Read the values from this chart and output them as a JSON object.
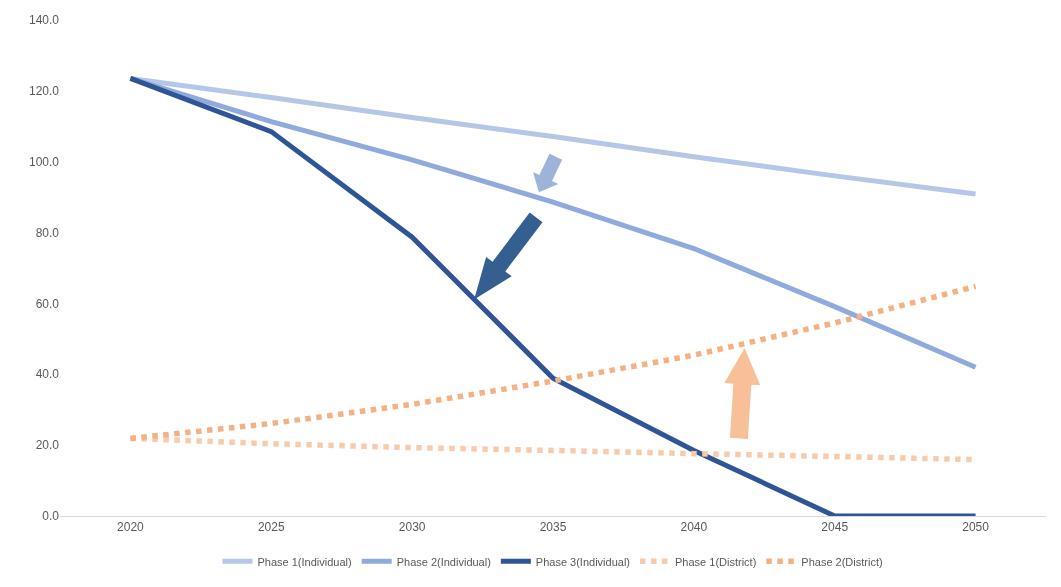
{
  "chart_data": {
    "type": "line",
    "categories": [
      "2020",
      "2025",
      "2030",
      "2035",
      "2040",
      "2045",
      "2050"
    ],
    "series": [
      {
        "name": "Phase 1(Individual)",
        "color": "#b4c7e7",
        "line_style": "solid",
        "values": [
          123.5,
          118.1,
          112.5,
          107.1,
          101.4,
          96.0,
          90.9
        ]
      },
      {
        "name": "Phase 2(Individual)",
        "color": "#8faadc",
        "line_style": "solid",
        "values": [
          123.5,
          111.3,
          100.5,
          88.6,
          75.5,
          59.1,
          42.0
        ]
      },
      {
        "name": "Phase 3(Individual)",
        "color": "#2f5597",
        "line_style": "solid",
        "values": [
          123.5,
          108.5,
          78.7,
          38.9,
          18.5,
          0.0,
          0.0
        ]
      },
      {
        "name": "Phase 1(District)",
        "color": "#f8cbad",
        "line_style": "dotted",
        "values": [
          21.9,
          20.4,
          19.3,
          18.5,
          17.6,
          16.8,
          15.9
        ]
      },
      {
        "name": "Phase 2(District)",
        "color": "#f4b183",
        "line_style": "dotted",
        "values": [
          21.9,
          26.1,
          31.5,
          38.1,
          45.4,
          54.5,
          64.8
        ]
      }
    ],
    "ylim": [
      0,
      140
    ],
    "yticks": [
      {
        "value": 0,
        "label": "0.0"
      },
      {
        "value": 20,
        "label": "20.0"
      },
      {
        "value": 40,
        "label": "40.0"
      },
      {
        "value": 60,
        "label": "60.0"
      },
      {
        "value": 80,
        "label": "80.0"
      },
      {
        "value": 100,
        "label": "100.0"
      },
      {
        "value": 120,
        "label": "120.0"
      },
      {
        "value": 140,
        "label": "140.0"
      }
    ],
    "legend": "bottom",
    "marker": "none"
  }
}
